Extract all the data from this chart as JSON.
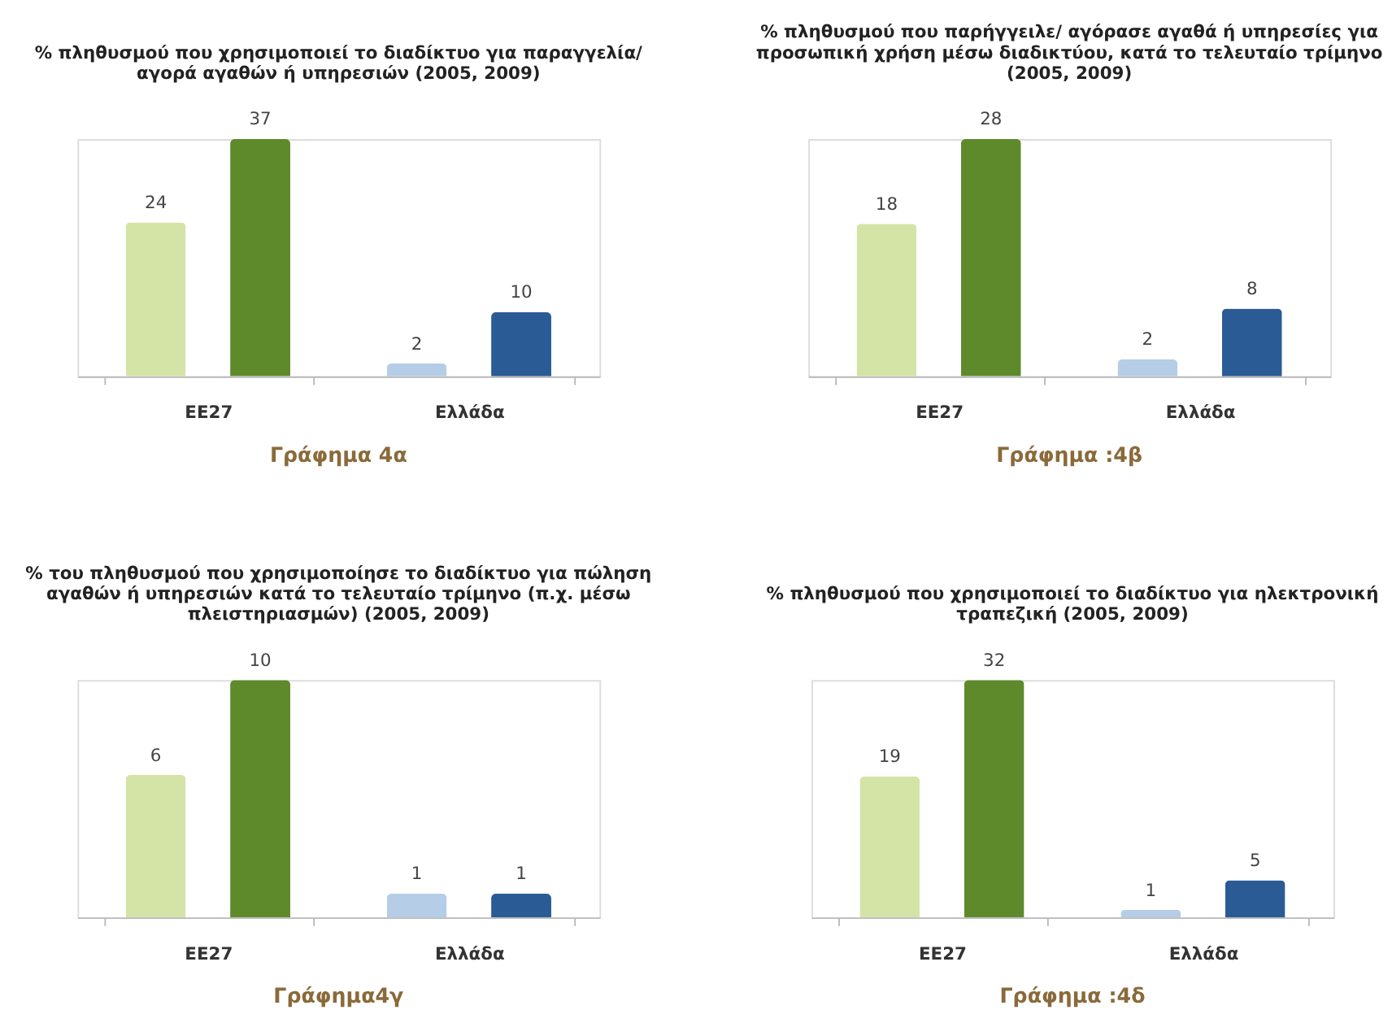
{
  "chart_data": [
    {
      "type": "bar",
      "title": "% πληθυσμού που χρησιμοποιεί το διαδίκτυο για παραγγελία/ αγορά αγαθών ή υπηρεσιών (2005, 2009)",
      "categories": [
        "ΕΕ27",
        "Ελλάδα"
      ],
      "data_labels": true,
      "annotations": [
        "Γράφημα 4α"
      ],
      "series": [
        {
          "colors": [
            "#d3e4a6",
            "#b5cde6"
          ],
          "values": [
            24,
            2
          ]
        },
        {
          "colors": [
            "#5e8a2b",
            "#2b5b95"
          ],
          "values": [
            37,
            10
          ]
        }
      ]
    },
    {
      "type": "bar",
      "title": "% πληθυσμού που παρήγγειλε/ αγόρασε αγαθά ή υπηρεσίες για προσωπική χρήση μέσω διαδικτύου, κατά το τελευταίο τρίμηνο (2005, 2009)",
      "categories": [
        "ΕΕ27",
        "Ελλάδα"
      ],
      "data_labels": true,
      "annotations": [
        "Γράφημα :4β"
      ],
      "series": [
        {
          "colors": [
            "#d3e4a6",
            "#b5cde6"
          ],
          "values": [
            18,
            2
          ]
        },
        {
          "colors": [
            "#5e8a2b",
            "#2b5b95"
          ],
          "values": [
            28,
            8
          ]
        }
      ]
    },
    {
      "type": "bar",
      "title": "% του πληθυσμού που χρησιμοποίησε το διαδίκτυο για πώληση αγαθών ή υπηρεσιών κατά το τελευταίο τρίμηνο (π.χ. μέσω πλειστηριασμών) (2005, 2009)",
      "categories": [
        "ΕΕ27",
        "Ελλάδα"
      ],
      "data_labels": true,
      "annotations": [
        "Γράφημα4γ"
      ],
      "series": [
        {
          "colors": [
            "#d3e4a6",
            "#b5cde6"
          ],
          "values": [
            6,
            1
          ]
        },
        {
          "colors": [
            "#5e8a2b",
            "#2b5b95"
          ],
          "values": [
            10,
            1
          ]
        }
      ]
    },
    {
      "type": "bar",
      "title": "% πληθυσμού που χρησιμοποιεί το διαδίκτυο για ηλεκτρονική τραπεζική (2005, 2009)",
      "categories": [
        "ΕΕ27",
        "Ελλάδα"
      ],
      "data_labels": true,
      "annotations": [
        "Γράφημα :4δ"
      ],
      "series": [
        {
          "colors": [
            "#d3e4a6",
            "#b5cde6"
          ],
          "values": [
            19,
            1
          ]
        },
        {
          "colors": [
            "#5e8a2b",
            "#2b5b95"
          ],
          "values": [
            32,
            5
          ]
        }
      ]
    }
  ]
}
